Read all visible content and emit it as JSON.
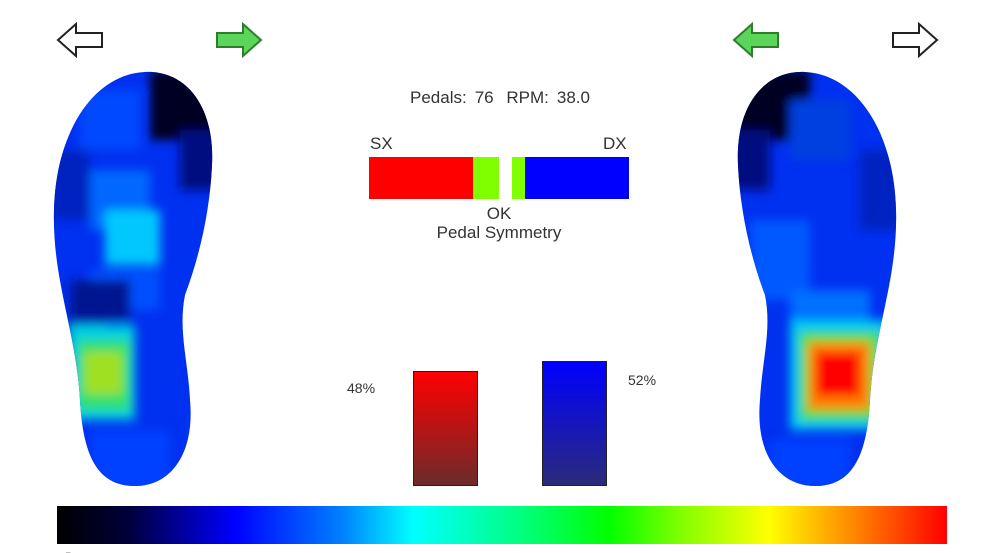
{
  "header": {
    "stats": {
      "pedals_label": "Pedals:",
      "pedals_value": "76",
      "rpm_label": "RPM:",
      "rpm_value": "38.0"
    }
  },
  "icons": {
    "left_back": "arrow-left-outline-icon",
    "left_forward": "arrow-right-green-icon",
    "right_back": "arrow-left-green-icon",
    "right_forward": "arrow-right-outline-icon"
  },
  "symmetry": {
    "left_label": "SX",
    "right_label": "DX",
    "status": "OK",
    "caption": "Pedal Symmetry",
    "segments_fraction": {
      "red": 0.4,
      "green_left": 0.1,
      "white": 0.05,
      "green_right": 0.05,
      "blue": 0.4
    }
  },
  "distribution": {
    "left": {
      "percent_label": "48%",
      "value": 48,
      "color_top": "#ff0000",
      "color_bottom": "#6b2b2b"
    },
    "right": {
      "percent_label": "52%",
      "value": 52,
      "color_top": "#0000ff",
      "color_bottom": "#2b2b7a"
    }
  },
  "color_scale": {
    "stops": [
      "#000000",
      "#0000ff",
      "#00ffff",
      "#00ff00",
      "#ffff00",
      "#ff0000"
    ]
  },
  "footer": {
    "tick": "_"
  }
}
